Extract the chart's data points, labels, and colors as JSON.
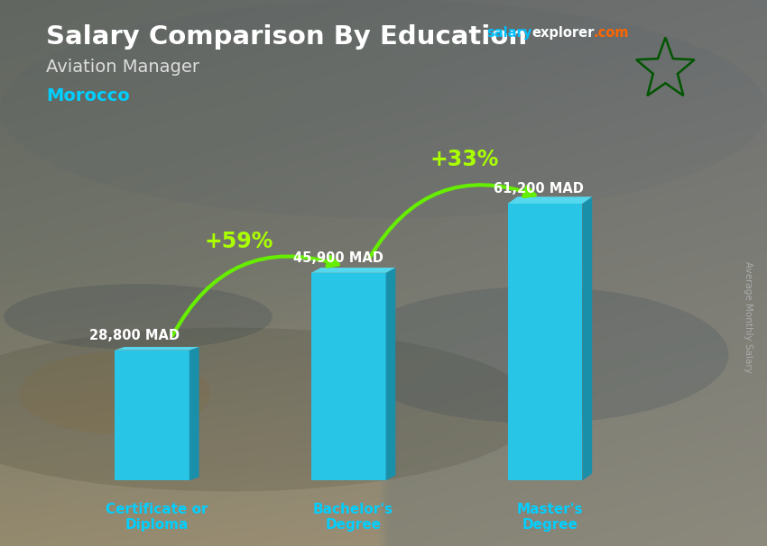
{
  "title": "Salary Comparison By Education",
  "subtitle": "Aviation Manager",
  "country": "Morocco",
  "categories": [
    "Certificate or\nDiploma",
    "Bachelor's\nDegree",
    "Master's\nDegree"
  ],
  "values": [
    28800,
    45900,
    61200
  ],
  "value_labels": [
    "28,800 MAD",
    "45,900 MAD",
    "61,200 MAD"
  ],
  "pct_labels": [
    "+59%",
    "+33%"
  ],
  "bar_color_front": "#29C5E6",
  "bar_color_side": "#1A8FAA",
  "bar_color_top": "#55D8EE",
  "bg_top_color": "#707878",
  "bg_bottom_color": "#555F5F",
  "title_color": "#FFFFFF",
  "subtitle_color": "#DDDDDD",
  "country_color": "#00CFFF",
  "salary_color": "#FFFFFF",
  "pct_color": "#AAFF00",
  "arrow_color": "#66EE00",
  "xtick_color": "#00CFFF",
  "site_salary_color": "#00BFFF",
  "site_explorer_color": "#FFFFFF",
  "site_com_color": "#FF6600",
  "ylabel_text": "Average Monthly Salary",
  "ylabel_color": "#AAAAAA",
  "flag_bg": "#CC0000",
  "flag_star_color": "#005500"
}
